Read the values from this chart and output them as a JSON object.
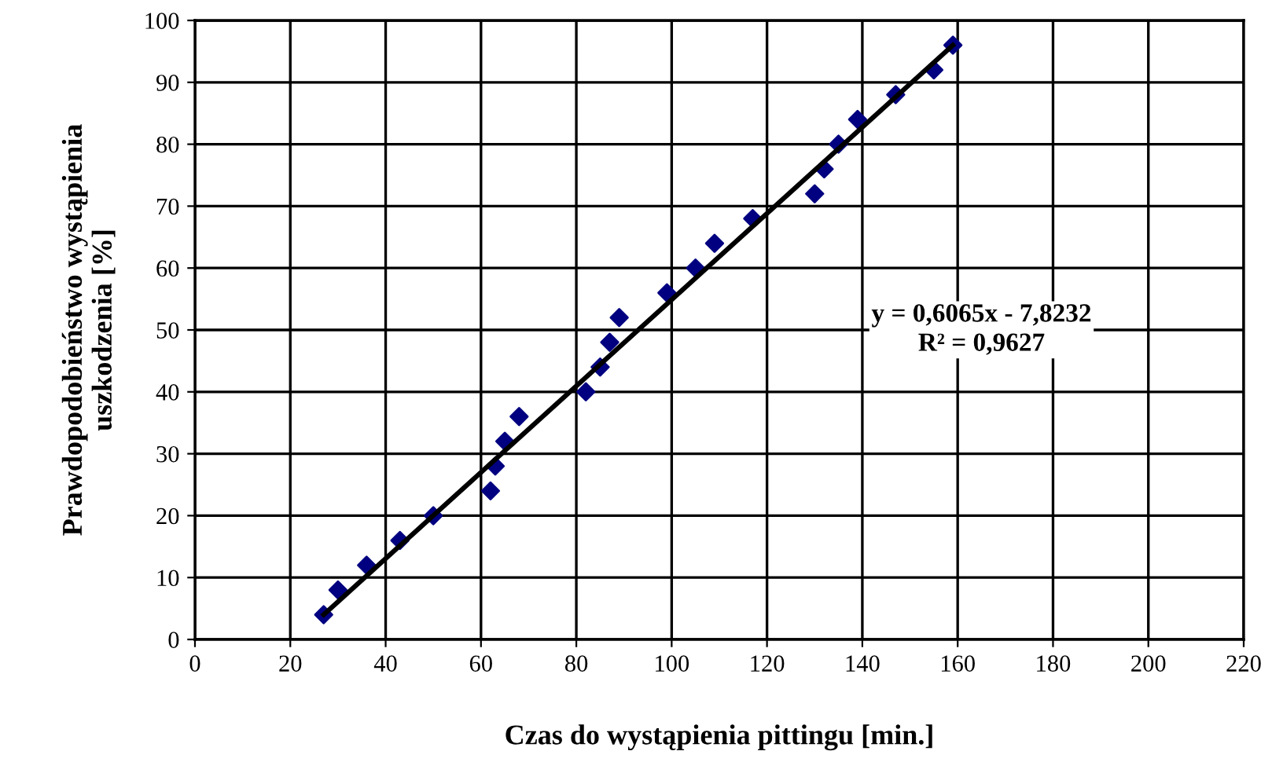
{
  "chart_data": {
    "type": "scatter",
    "xlabel": "Czas do wystąpienia pittingu [min.]",
    "ylabel": "Prawdopodobieństwo wystąpienia\nuszkodzenia [%]",
    "series": [
      {
        "color": "#000080",
        "marker": "diamond",
        "x": [
          27,
          30,
          36,
          43,
          50,
          62,
          63,
          65,
          68,
          82,
          85,
          87,
          89,
          99,
          105,
          109,
          117,
          130,
          132,
          135,
          139,
          147,
          155,
          159
        ],
        "values": [
          4,
          8,
          12,
          16,
          20,
          24,
          28,
          32,
          36,
          40,
          44,
          48,
          52,
          56,
          60,
          64,
          68,
          72,
          76,
          80,
          84,
          88,
          92,
          96
        ]
      },
      {
        "type": "line",
        "color": "#000000",
        "line_style": "solid",
        "x": [
          27,
          159
        ],
        "values": [
          4,
          96
        ]
      }
    ],
    "annotations": [
      "y = 0,6065x - 7,8232\nR² = 0,9627"
    ],
    "xlim": [
      0,
      220
    ],
    "xticks": [
      0,
      20,
      40,
      60,
      80,
      100,
      120,
      140,
      160,
      180,
      200,
      220
    ],
    "ylim": [
      0,
      100
    ],
    "yticks": [
      0,
      10,
      20,
      30,
      40,
      50,
      60,
      70,
      80,
      90,
      100
    ],
    "grid": true
  }
}
